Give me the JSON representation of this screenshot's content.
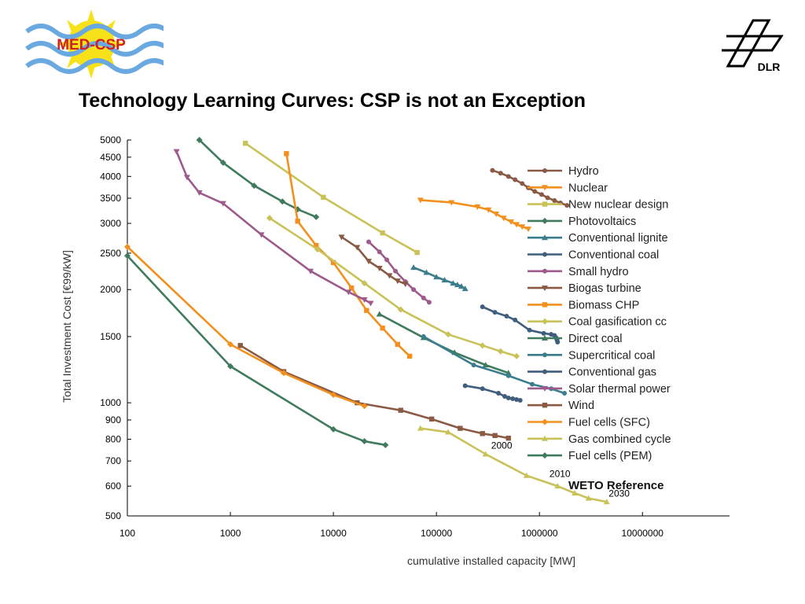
{
  "slide": {
    "title": "Technology Learning Curves: CSP is not an Exception",
    "logo_left_text": "MED-CSP",
    "logo_right_text": "DLR"
  },
  "chart_data": {
    "type": "line",
    "xscale": "log",
    "yscale": "log",
    "xlabel": "cumulative installed capacity [MW]",
    "ylabel": "Total Investment Cost [€99/kW]",
    "xlim": [
      100,
      70000000
    ],
    "ylim": [
      500,
      5000
    ],
    "x_ticks": [
      100,
      1000,
      10000,
      100000,
      1000000,
      10000000
    ],
    "x_tick_labels": [
      "100",
      "1000",
      "10000",
      "100000",
      "1000000",
      "10000000"
    ],
    "y_ticks": [
      500,
      600,
      700,
      800,
      900,
      1000,
      1500,
      2000,
      2500,
      3000,
      3500,
      4000,
      4500,
      5000
    ],
    "y_tick_labels": [
      "500",
      "600",
      "700",
      "800",
      "900",
      "1000",
      "1500",
      "2000",
      "2500",
      "3000",
      "3500",
      "4000",
      "4500",
      "5000"
    ],
    "grid": false,
    "legend_position": "right",
    "series": [
      {
        "name": "Hydro",
        "color": "#8b5a44",
        "marker": "circle",
        "x": [
          350000,
          420000,
          500000,
          580000,
          680000,
          780000,
          900000,
          1050000,
          1200000,
          1400000,
          1600000,
          1850000
        ],
        "y": [
          4150,
          4080,
          4000,
          3920,
          3830,
          3730,
          3650,
          3580,
          3510,
          3450,
          3400,
          3350
        ]
      },
      {
        "name": "Nuclear",
        "color": "#f3901d",
        "marker": "tri-down",
        "x": [
          70000,
          140000,
          250000,
          320000,
          380000,
          450000,
          530000,
          600000,
          680000,
          780000
        ],
        "y": [
          3460,
          3410,
          3320,
          3260,
          3180,
          3100,
          3030,
          2980,
          2940,
          2900
        ]
      },
      {
        "name": "New nuclear design",
        "color": "#c9c259",
        "marker": "square",
        "x": [
          1400,
          8000,
          30000,
          65000
        ],
        "y": [
          4900,
          3520,
          2830,
          2510
        ]
      },
      {
        "name": "Photovoltaics",
        "color": "#3f7b5c",
        "marker": "diamond",
        "x": [
          500,
          850,
          1700,
          3200,
          4500,
          6800
        ],
        "y": [
          5000,
          4350,
          3780,
          3430,
          3270,
          3120
        ]
      },
      {
        "name": "Conventional lignite",
        "color": "#3a7d8c",
        "marker": "tri-up",
        "x": [
          60000,
          80000,
          100000,
          120000,
          145000,
          160000,
          175000,
          190000
        ],
        "y": [
          2290,
          2220,
          2160,
          2120,
          2080,
          2060,
          2040,
          2010
        ]
      },
      {
        "name": "Conventional coal",
        "color": "#3f5e7d",
        "marker": "circle",
        "x": [
          280000,
          370000,
          480000,
          580000,
          800000,
          1100000,
          1300000,
          1400000,
          1450000,
          1480000,
          1500000
        ],
        "y": [
          1800,
          1740,
          1700,
          1660,
          1560,
          1530,
          1520,
          1510,
          1490,
          1470,
          1450
        ]
      },
      {
        "name": "Small hydro",
        "color": "#9e5a8c",
        "marker": "circle",
        "x": [
          22000,
          28000,
          33000,
          40000,
          50000,
          60000,
          75000,
          85000
        ],
        "y": [
          2680,
          2520,
          2400,
          2240,
          2100,
          2000,
          1900,
          1850
        ]
      },
      {
        "name": "Biogas turbine",
        "color": "#8b5a44",
        "marker": "tri-down",
        "x": [
          12000,
          17000,
          22000,
          28000,
          35000,
          42000,
          50000
        ],
        "y": [
          2760,
          2590,
          2380,
          2280,
          2180,
          2110,
          2070
        ]
      },
      {
        "name": "Biomass CHP",
        "color": "#f3901d",
        "marker": "square",
        "x": [
          3500,
          4500,
          6800,
          10000,
          15000,
          21000,
          30000,
          42000,
          55000
        ],
        "y": [
          4600,
          3040,
          2620,
          2360,
          2020,
          1760,
          1580,
          1430,
          1330
        ]
      },
      {
        "name": "Coal gasification cc",
        "color": "#c9c259",
        "marker": "diamond",
        "x": [
          2400,
          7000,
          20000,
          45000,
          130000,
          280000,
          420000,
          600000
        ],
        "y": [
          3100,
          2560,
          2080,
          1770,
          1520,
          1420,
          1370,
          1330
        ]
      },
      {
        "name": "Direct coal",
        "color": "#3f7b5c",
        "marker": "tri-up",
        "x": [
          28000,
          75000,
          150000,
          300000,
          500000
        ],
        "y": [
          1720,
          1490,
          1360,
          1260,
          1200
        ]
      },
      {
        "name": "Supercritical coal",
        "color": "#3a7d8c",
        "marker": "circle",
        "x": [
          75000,
          230000,
          500000,
          850000,
          1300000,
          1750000
        ],
        "y": [
          1500,
          1260,
          1180,
          1120,
          1090,
          1060
        ]
      },
      {
        "name": "Conventional gas",
        "color": "#3f5e7d",
        "marker": "circle",
        "x": [
          190000,
          280000,
          400000,
          460000,
          500000,
          550000,
          600000,
          650000
        ],
        "y": [
          1110,
          1090,
          1060,
          1040,
          1030,
          1025,
          1020,
          1015
        ]
      },
      {
        "name": "Solar thermal power",
        "color": "#9e5a8c",
        "marker": "tri-down",
        "x": [
          300,
          380,
          500,
          850,
          2000,
          6000,
          14000,
          20000,
          23000
        ],
        "y": [
          4660,
          3980,
          3620,
          3390,
          2800,
          2240,
          1970,
          1880,
          1840
        ]
      },
      {
        "name": "Wind",
        "color": "#8b5a44",
        "marker": "square",
        "x": [
          1250,
          3300,
          17000,
          45000,
          90000,
          170000,
          280000,
          370000,
          500000
        ],
        "y": [
          1420,
          1210,
          1000,
          955,
          905,
          855,
          828,
          818,
          805
        ]
      },
      {
        "name": "Fuel cells (SFC)",
        "color": "#f3901d",
        "marker": "diamond",
        "x": [
          100,
          1000,
          3300,
          10000,
          20000
        ],
        "y": [
          2600,
          1430,
          1200,
          1050,
          980
        ]
      },
      {
        "name": "Gas combined cycle",
        "color": "#c9c259",
        "marker": "tri-up",
        "x": [
          70000,
          130000,
          300000,
          750000,
          1500000,
          2200000,
          3000000,
          4500000
        ],
        "y": [
          855,
          835,
          730,
          640,
          600,
          575,
          557,
          545
        ]
      },
      {
        "name": "Fuel cells (PEM)",
        "color": "#3f7b5c",
        "marker": "diamond",
        "x": [
          100,
          1000,
          10000,
          20000,
          32000
        ],
        "y": [
          2460,
          1250,
          850,
          790,
          772
        ]
      }
    ],
    "legend_footer": "WETO Reference",
    "annotations": [
      {
        "text": "2000",
        "x": 340000,
        "y": 755
      },
      {
        "text": "2010",
        "x": 1250000,
        "y": 635
      },
      {
        "text": "2030",
        "x": 4700000,
        "y": 562
      }
    ]
  }
}
